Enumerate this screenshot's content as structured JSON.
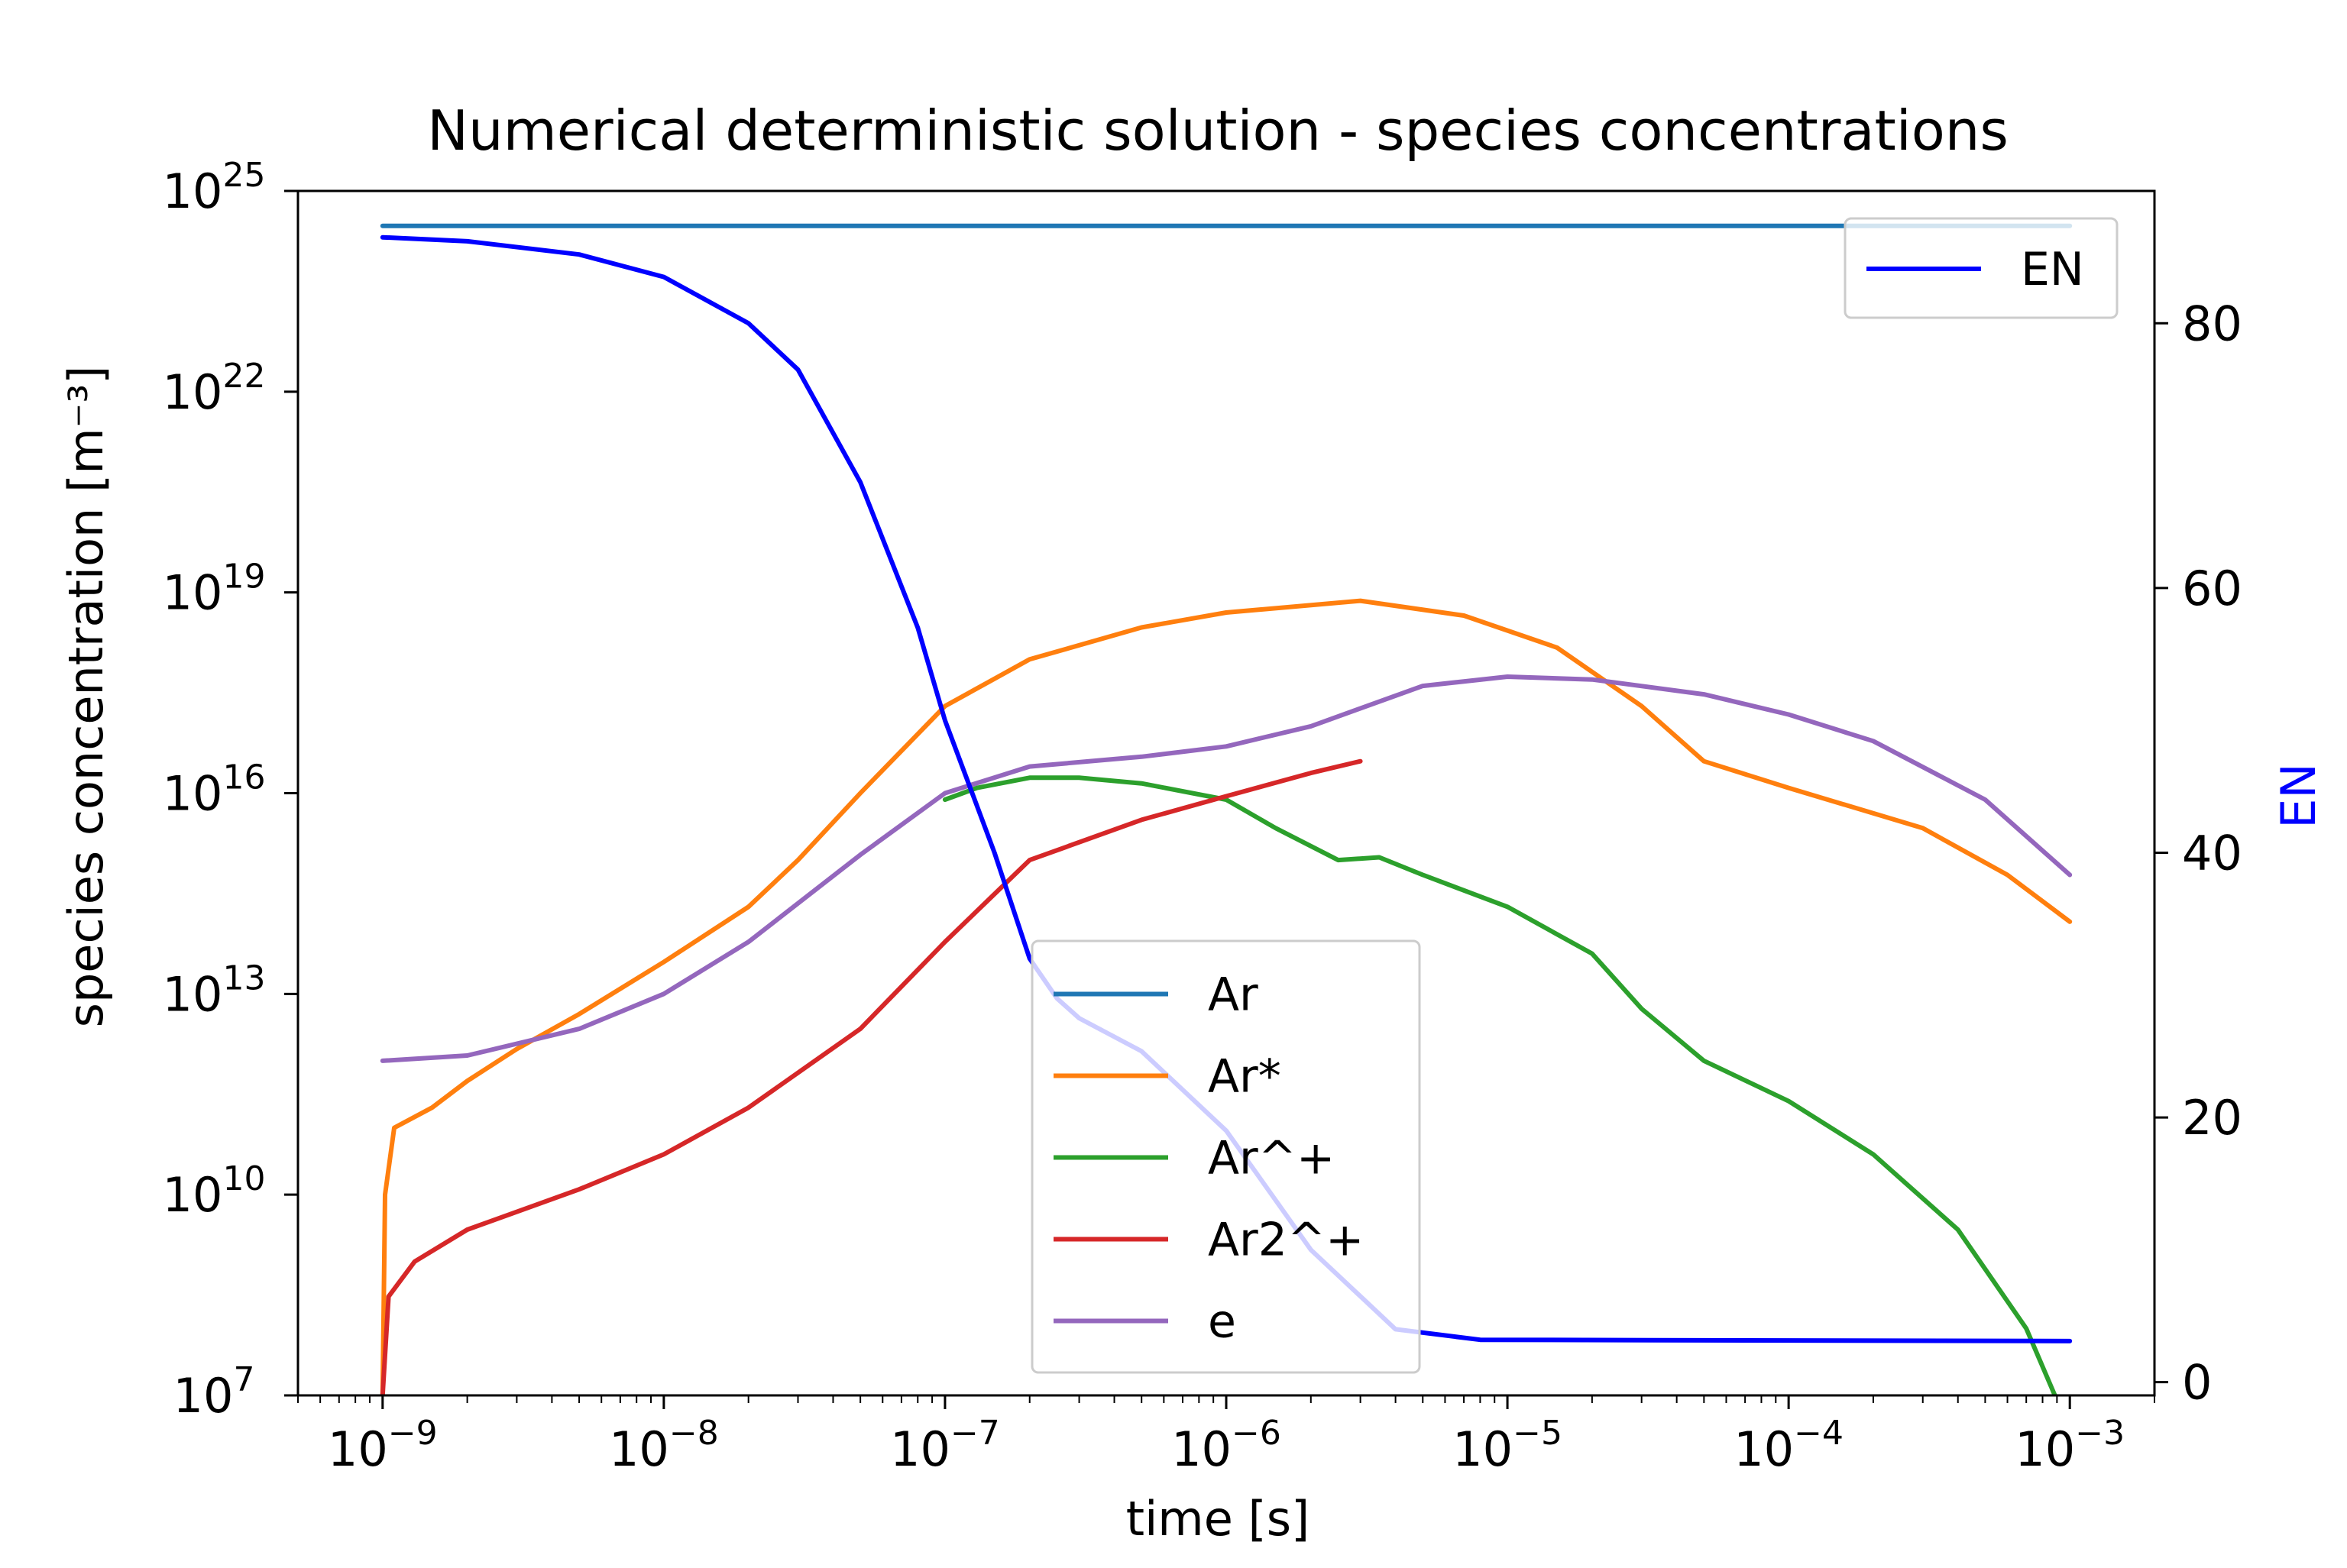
{
  "chart_data": {
    "type": "line",
    "title": "Numerical deterministic solution - species concentrations",
    "xlabel": "time [s]",
    "ylabel": "species concentration [m⁻³]",
    "y2label": "EN",
    "xscale": "log",
    "yscale": "log",
    "xlim": [
      5e-10,
      0.002
    ],
    "ylim": [
      10000000.0,
      1e+25
    ],
    "y2lim": [
      -1,
      90
    ],
    "grid": false,
    "x_ticks": [
      {
        "value": 1e-09,
        "base": "10",
        "exp": "−9"
      },
      {
        "value": 1e-08,
        "base": "10",
        "exp": "−8"
      },
      {
        "value": 1e-07,
        "base": "10",
        "exp": "−7"
      },
      {
        "value": 1e-06,
        "base": "10",
        "exp": "−6"
      },
      {
        "value": 1e-05,
        "base": "10",
        "exp": "−5"
      },
      {
        "value": 0.0001,
        "base": "10",
        "exp": "−4"
      },
      {
        "value": 0.001,
        "base": "10",
        "exp": "−3"
      }
    ],
    "y_ticks": [
      {
        "value": 10000000.0,
        "base": "10",
        "exp": "7"
      },
      {
        "value": 10000000000.0,
        "base": "10",
        "exp": "10"
      },
      {
        "value": 10000000000000.0,
        "base": "10",
        "exp": "13"
      },
      {
        "value": 1e+16,
        "base": "10",
        "exp": "16"
      },
      {
        "value": 1e+19,
        "base": "10",
        "exp": "19"
      },
      {
        "value": 1e+22,
        "base": "10",
        "exp": "22"
      },
      {
        "value": 1e+25,
        "base": "10",
        "exp": "25"
      }
    ],
    "y2_ticks": [
      0,
      20,
      40,
      60,
      80
    ],
    "legend_main": {
      "placement": "lower-center"
    },
    "legend_right": {
      "placement": "upper-right"
    },
    "series": [
      {
        "name": "Ar",
        "axis": "left",
        "color": "#1f77b4",
        "points": [
          [
            1e-09,
            3e+24
          ],
          [
            0.001,
            3e+24
          ]
        ]
      },
      {
        "name": "Ar*",
        "axis": "left",
        "color": "#ff7f0e",
        "points": [
          [
            1e-09,
            10000000.0
          ],
          [
            1.02e-09,
            10000000000.0
          ],
          [
            1.1e-09,
            100000000000.0
          ],
          [
            1.5e-09,
            200000000000.0
          ],
          [
            2e-09,
            500000000000.0
          ],
          [
            3e-09,
            1500000000000.0
          ],
          [
            5e-09,
            5000000000000.0
          ],
          [
            1e-08,
            30000000000000.0
          ],
          [
            2e-08,
            200000000000000.0
          ],
          [
            3e-08,
            1000000000000000.0
          ],
          [
            5e-08,
            1e+16
          ],
          [
            1e-07,
            2e+17
          ],
          [
            2e-07,
            1e+18
          ],
          [
            5e-07,
            3e+18
          ],
          [
            1e-06,
            5e+18
          ],
          [
            3e-06,
            7.5e+18
          ],
          [
            7e-06,
            4.5e+18
          ],
          [
            1.5e-05,
            1.5e+18
          ],
          [
            3e-05,
            2e+17
          ],
          [
            5e-05,
            3e+16
          ],
          [
            0.0001,
            1.2e+16
          ],
          [
            0.0003,
            3000000000000000.0
          ],
          [
            0.0006,
            600000000000000.0
          ],
          [
            0.001,
            120000000000000.0
          ]
        ]
      },
      {
        "name": "Ar^+",
        "axis": "left",
        "color": "#2ca02c",
        "points": [
          [
            1e-07,
            8000000000000000.0
          ],
          [
            1.3e-07,
            1.2e+16
          ],
          [
            2e-07,
            1.7e+16
          ],
          [
            3e-07,
            1.7e+16
          ],
          [
            5e-07,
            1.4e+16
          ],
          [
            1e-06,
            8000000000000000.0
          ],
          [
            1.5e-06,
            3000000000000000.0
          ],
          [
            2.5e-06,
            1000000000000000.0
          ],
          [
            3.5e-06,
            1100000000000000.0
          ],
          [
            5e-06,
            600000000000000.0
          ],
          [
            1e-05,
            200000000000000.0
          ],
          [
            2e-05,
            40000000000000.0
          ],
          [
            3e-05,
            6000000000000.0
          ],
          [
            5e-05,
            1000000000000.0
          ],
          [
            0.0001,
            250000000000.0
          ],
          [
            0.0002,
            40000000000.0
          ],
          [
            0.0004,
            3000000000.0
          ],
          [
            0.0007,
            100000000.0
          ],
          [
            0.001,
            3000000.0
          ]
        ]
      },
      {
        "name": "Ar2^+",
        "axis": "left",
        "color": "#d62728",
        "points": [
          [
            1e-09,
            10000000.0
          ],
          [
            1.05e-09,
            300000000.0
          ],
          [
            1.3e-09,
            1000000000.0
          ],
          [
            2e-09,
            3000000000.0
          ],
          [
            5e-09,
            12000000000.0
          ],
          [
            1e-08,
            40000000000.0
          ],
          [
            2e-08,
            200000000000.0
          ],
          [
            5e-08,
            3000000000000.0
          ],
          [
            1e-07,
            60000000000000.0
          ],
          [
            2e-07,
            1000000000000000.0
          ],
          [
            5e-07,
            4000000000000000.0
          ],
          [
            1e-06,
            9000000000000000.0
          ],
          [
            2e-06,
            2e+16
          ],
          [
            3e-06,
            3e+16
          ]
        ]
      },
      {
        "name": "e",
        "axis": "left",
        "color": "#9467bd",
        "points": [
          [
            1e-09,
            1000000000000.0
          ],
          [
            2e-09,
            1200000000000.0
          ],
          [
            5e-09,
            3000000000000.0
          ],
          [
            1e-08,
            10000000000000.0
          ],
          [
            2e-08,
            60000000000000.0
          ],
          [
            5e-08,
            1200000000000000.0
          ],
          [
            1e-07,
            1e+16
          ],
          [
            2e-07,
            2.5e+16
          ],
          [
            5e-07,
            3.5e+16
          ],
          [
            1e-06,
            5e+16
          ],
          [
            2e-06,
            1e+17
          ],
          [
            5e-06,
            4e+17
          ],
          [
            1e-05,
            5.5e+17
          ],
          [
            2e-05,
            5e+17
          ],
          [
            5e-05,
            3e+17
          ],
          [
            0.0001,
            1.5e+17
          ],
          [
            0.0002,
            6e+16
          ],
          [
            0.0005,
            8000000000000000.0
          ],
          [
            0.001,
            600000000000000.0
          ]
        ]
      },
      {
        "name": "EN",
        "axis": "right",
        "color": "#0000ff",
        "points": [
          [
            1e-09,
            86.5
          ],
          [
            2e-09,
            86.2
          ],
          [
            5e-09,
            85.2
          ],
          [
            1e-08,
            83.5
          ],
          [
            2e-08,
            80
          ],
          [
            3e-08,
            76.5
          ],
          [
            5e-08,
            68
          ],
          [
            8e-08,
            57
          ],
          [
            1e-07,
            50
          ],
          [
            1.5e-07,
            40
          ],
          [
            2e-07,
            32
          ],
          [
            2.5e-07,
            29
          ],
          [
            3e-07,
            27.5
          ],
          [
            5e-07,
            25
          ],
          [
            1e-06,
            19
          ],
          [
            2e-06,
            10
          ],
          [
            4e-06,
            4
          ],
          [
            8e-06,
            3.2
          ],
          [
            0.001,
            3.1
          ]
        ]
      }
    ]
  }
}
